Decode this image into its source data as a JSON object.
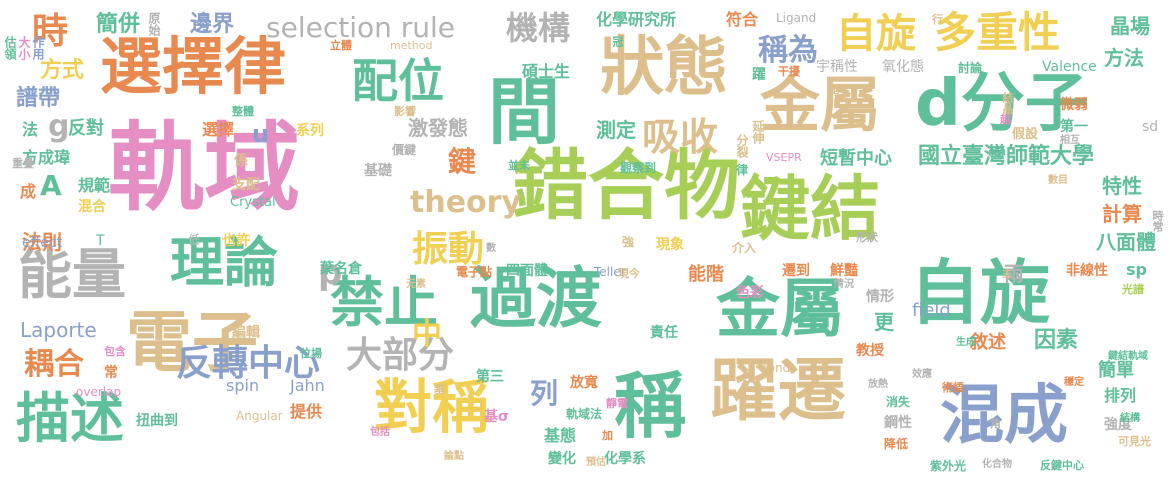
{
  "words": [
    {
      "text": "軌域",
      "color": "c3"
    },
    {
      "text": "錯合物",
      "color": "c4"
    },
    {
      "text": "鍵結",
      "color": "c4"
    },
    {
      "text": "電子",
      "color": "c6"
    },
    {
      "text": "選擇律",
      "color": "c0"
    },
    {
      "text": "狀態",
      "color": "c6"
    },
    {
      "text": "過渡",
      "color": "c1"
    },
    {
      "text": "金屬",
      "color": "c1"
    },
    {
      "text": "金屬",
      "color": "c6"
    },
    {
      "text": "d分子",
      "color": "c1"
    },
    {
      "text": "躍遷",
      "color": "c6"
    },
    {
      "text": "自旋",
      "color": "c1"
    },
    {
      "text": "混成",
      "color": "c2"
    },
    {
      "text": "對稱",
      "color": "c5"
    },
    {
      "text": "禁止",
      "color": "c1"
    },
    {
      "text": "理論",
      "color": "c1"
    },
    {
      "text": "能量",
      "color": "c7"
    },
    {
      "text": "描述",
      "color": "c1"
    },
    {
      "text": "間",
      "color": "c1"
    },
    {
      "text": "稱",
      "color": "c1"
    },
    {
      "text": "配位",
      "color": "c1"
    },
    {
      "text": "自旋",
      "color": "c5"
    },
    {
      "text": "多重性",
      "color": "c5"
    },
    {
      "text": "selection rule",
      "color": "c7"
    },
    {
      "text": "機構",
      "color": "c7"
    },
    {
      "text": "反轉中心",
      "color": "c2"
    },
    {
      "text": "吸收",
      "color": "c6"
    },
    {
      "text": "大部分",
      "color": "c7"
    },
    {
      "text": "振動",
      "color": "c5"
    },
    {
      "text": "時",
      "color": "c0"
    },
    {
      "text": "稱為",
      "color": "c2"
    },
    {
      "text": "中",
      "color": "c5"
    },
    {
      "text": "耦合",
      "color": "c0"
    },
    {
      "text": "p",
      "color": "c7"
    },
    {
      "text": "theory",
      "color": "c6"
    },
    {
      "text": "鍵",
      "color": "c0"
    },
    {
      "text": "列",
      "color": "c2"
    },
    {
      "text": "國立臺灣師範大學",
      "color": "c1"
    },
    {
      "text": "短暫中心",
      "color": "c1"
    },
    {
      "text": "晶場",
      "color": "c1"
    },
    {
      "text": "方法",
      "color": "c1"
    },
    {
      "text": "簡併",
      "color": "c1"
    },
    {
      "text": "邊界",
      "color": "c2"
    },
    {
      "text": "方式",
      "color": "c5"
    },
    {
      "text": "譜帶",
      "color": "c2"
    },
    {
      "text": "化學研究所",
      "color": "c1"
    },
    {
      "text": "符合",
      "color": "c0"
    },
    {
      "text": "Ligand",
      "color": "c7"
    },
    {
      "text": "碩士生",
      "color": "c1"
    },
    {
      "text": "宇稱性",
      "color": "c7"
    },
    {
      "text": "氧化態",
      "color": "c7"
    },
    {
      "text": "討論",
      "color": "c1"
    },
    {
      "text": "Valence",
      "color": "c1"
    },
    {
      "text": "微弱",
      "color": "c0"
    },
    {
      "text": "激發態",
      "color": "c7"
    },
    {
      "text": "測定",
      "color": "c1"
    },
    {
      "text": "選擇",
      "color": "c0"
    },
    {
      "text": "系列",
      "color": "c5"
    },
    {
      "text": "u",
      "color": "c2"
    },
    {
      "text": "g",
      "color": "c7"
    },
    {
      "text": "反對",
      "color": "c1"
    },
    {
      "text": "A",
      "color": "c1"
    },
    {
      "text": "規範",
      "color": "c1"
    },
    {
      "text": "混合",
      "color": "c5"
    },
    {
      "text": "基礎",
      "color": "c7"
    },
    {
      "text": "特性",
      "color": "c1"
    },
    {
      "text": "計算",
      "color": "c0"
    },
    {
      "text": "八面體",
      "color": "c1"
    },
    {
      "text": "法則",
      "color": "c0"
    },
    {
      "text": "Crystal",
      "color": "c1"
    },
    {
      "text": "effect",
      "color": "c2"
    },
    {
      "text": "T",
      "color": "c1"
    },
    {
      "text": "葉名倉",
      "color": "c1"
    },
    {
      "text": "四面體",
      "color": "c1"
    },
    {
      "text": "能階",
      "color": "c0"
    },
    {
      "text": "色彩",
      "color": "c3"
    },
    {
      "text": "遷到",
      "color": "c0"
    },
    {
      "text": "鮮豔",
      "color": "c0"
    },
    {
      "text": "兩",
      "color": "c7"
    },
    {
      "text": "sp",
      "color": "c1"
    },
    {
      "text": "field",
      "color": "c2"
    },
    {
      "text": "Laporte",
      "color": "c2"
    },
    {
      "text": "責任",
      "color": "c1"
    },
    {
      "text": "更",
      "color": "c1"
    },
    {
      "text": "敘述",
      "color": "c0"
    },
    {
      "text": "因素",
      "color": "c1"
    },
    {
      "text": "教授",
      "color": "c0"
    },
    {
      "text": "簡單",
      "color": "c1"
    },
    {
      "text": "排列",
      "color": "c1"
    },
    {
      "text": "spin",
      "color": "c2"
    },
    {
      "text": "Jahn",
      "color": "c2"
    },
    {
      "text": "提供",
      "color": "c0"
    },
    {
      "text": "放寬",
      "color": "c0"
    },
    {
      "text": "第三",
      "color": "c1"
    },
    {
      "text": "基態",
      "color": "c1"
    },
    {
      "text": "基σ",
      "color": "c3"
    },
    {
      "text": "變化",
      "color": "c1"
    },
    {
      "text": "化學系",
      "color": "c1"
    },
    {
      "text": "消失",
      "color": "c1"
    },
    {
      "text": "鋼性",
      "color": "c7"
    },
    {
      "text": "強度",
      "color": "c7"
    },
    {
      "text": "降低",
      "color": "c0"
    },
    {
      "text": "紫外光",
      "color": "c1"
    },
    {
      "text": "觀察到",
      "color": "c1"
    },
    {
      "text": "現象",
      "color": "c5"
    },
    {
      "text": "介入",
      "color": "c6"
    },
    {
      "text": "Teller",
      "color": "c2"
    },
    {
      "text": "電子點",
      "color": "c0"
    },
    {
      "text": "bond",
      "color": "c6"
    },
    {
      "text": "Angular",
      "color": "c6"
    },
    {
      "text": "overlap",
      "color": "c3"
    },
    {
      "text": "扭曲到",
      "color": "c1"
    },
    {
      "text": "method",
      "color": "c6"
    },
    {
      "text": "原始",
      "color": "c7"
    },
    {
      "text": "估領",
      "color": "c1"
    },
    {
      "text": "大小",
      "color": "c3"
    },
    {
      "text": "作用",
      "color": "c2"
    },
    {
      "text": "法",
      "color": "c1"
    },
    {
      "text": "方成瑋",
      "color": "c1"
    },
    {
      "text": "成",
      "color": "c0"
    },
    {
      "text": "重疊",
      "color": "c7"
    },
    {
      "text": "低",
      "color": "c7"
    },
    {
      "text": "也許",
      "color": "c5"
    },
    {
      "text": "支配",
      "color": "c6"
    },
    {
      "text": "係",
      "color": "c6"
    },
    {
      "text": "價鍵",
      "color": "c7"
    },
    {
      "text": "編輯",
      "color": "c6"
    },
    {
      "text": "常",
      "color": "c0"
    },
    {
      "text": "包含",
      "color": "c3"
    },
    {
      "text": "位場",
      "color": "c1"
    },
    {
      "text": "延伸",
      "color": "c6"
    },
    {
      "text": "分裂",
      "color": "c6"
    },
    {
      "text": "VSEPR",
      "color": "c3"
    },
    {
      "text": "假設",
      "color": "c6"
    },
    {
      "text": "第一",
      "color": "c1"
    },
    {
      "text": "sd",
      "color": "c7"
    },
    {
      "text": "結晶",
      "color": "c6"
    },
    {
      "text": "越",
      "color": "c3"
    },
    {
      "text": "相互",
      "color": "c7"
    },
    {
      "text": "數目",
      "color": "c6"
    },
    {
      "text": "非線性",
      "color": "c0"
    },
    {
      "text": "光譜",
      "color": "c4"
    },
    {
      "text": "情形",
      "color": "c7"
    },
    {
      "text": "形狀",
      "color": "c7"
    },
    {
      "text": "情況",
      "color": "c7"
    },
    {
      "text": "現今",
      "color": "c6"
    },
    {
      "text": "元素",
      "color": "c6"
    },
    {
      "text": "強",
      "color": "c6"
    },
    {
      "text": "律",
      "color": "c1"
    },
    {
      "text": "鍵結軌域",
      "color": "c1"
    },
    {
      "text": "穩定",
      "color": "c0"
    },
    {
      "text": "可見光",
      "color": "c6"
    },
    {
      "text": "結構",
      "color": "c1"
    },
    {
      "text": "術語",
      "color": "c0"
    },
    {
      "text": "化合物",
      "color": "c7"
    },
    {
      "text": "反鍵中心",
      "color": "c1"
    },
    {
      "text": "生成",
      "color": "c1"
    },
    {
      "text": "效應",
      "color": "c7"
    },
    {
      "text": "放熱",
      "color": "c7"
    },
    {
      "text": "角",
      "color": "c7"
    },
    {
      "text": "靜電",
      "color": "c3"
    },
    {
      "text": "預估",
      "color": "c6"
    },
    {
      "text": "加",
      "color": "c0"
    },
    {
      "text": "軌域法",
      "color": "c1"
    },
    {
      "text": "論點",
      "color": "c6"
    },
    {
      "text": "包括",
      "color": "c3"
    },
    {
      "text": "基",
      "color": "c6"
    },
    {
      "text": "數",
      "color": "c7"
    },
    {
      "text": "並未",
      "color": "c1"
    },
    {
      "text": "影響",
      "color": "c6"
    },
    {
      "text": "整體",
      "color": "c1"
    },
    {
      "text": "立體",
      "color": "c0"
    },
    {
      "text": "冠",
      "color": "c1"
    },
    {
      "text": "干擾",
      "color": "c0"
    },
    {
      "text": "躍",
      "color": "c1"
    },
    {
      "text": "配",
      "color": "c6"
    },
    {
      "text": "行",
      "color": "c6"
    },
    {
      "text": "主",
      "color": "c6"
    },
    {
      "text": "時常",
      "color": "c7"
    }
  ]
}
